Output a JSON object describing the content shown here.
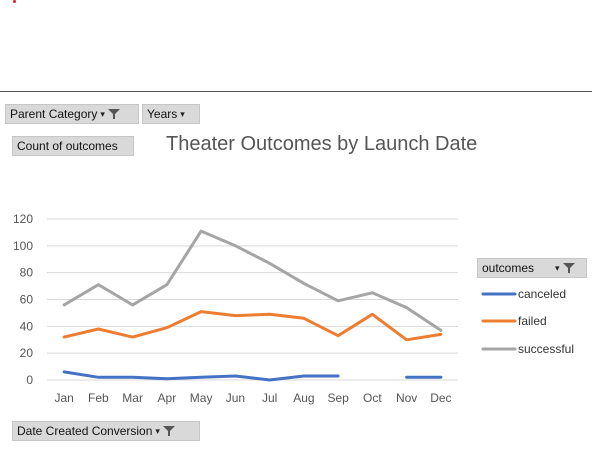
{
  "pivot": {
    "parent_category": "Parent Category",
    "years": "Years",
    "value_field": "Count of outcomes",
    "axis_field": "Date Created Conversion",
    "legend_field": "outcomes"
  },
  "colors": {
    "canceled": "#4472c4",
    "failed": "#ed7d31",
    "successful": "#a5a5a5",
    "gridline": "#d9d9d9",
    "button_bg": "#d9d9d9"
  },
  "chart_data": {
    "type": "line",
    "title": "Theater Outcomes by Launch Date",
    "xlabel": "",
    "ylabel": "",
    "categories": [
      "Jan",
      "Feb",
      "Mar",
      "Apr",
      "May",
      "Jun",
      "Jul",
      "Aug",
      "Sep",
      "Oct",
      "Nov",
      "Dec"
    ],
    "ylim": [
      0,
      120
    ],
    "yticks": [
      0,
      20,
      40,
      60,
      80,
      100,
      120
    ],
    "grid": true,
    "legend_position": "right",
    "series": [
      {
        "name": "canceled",
        "color": "#4472c4",
        "values": [
          6,
          2,
          2,
          1,
          2,
          3,
          0,
          3,
          3,
          null,
          2,
          2
        ]
      },
      {
        "name": "failed",
        "color": "#ed7d31",
        "values": [
          32,
          38,
          32,
          39,
          51,
          48,
          49,
          46,
          33,
          49,
          30,
          34
        ]
      },
      {
        "name": "successful",
        "color": "#a5a5a5",
        "values": [
          56,
          71,
          56,
          71,
          111,
          100,
          87,
          72,
          59,
          65,
          54,
          37
        ]
      }
    ]
  }
}
